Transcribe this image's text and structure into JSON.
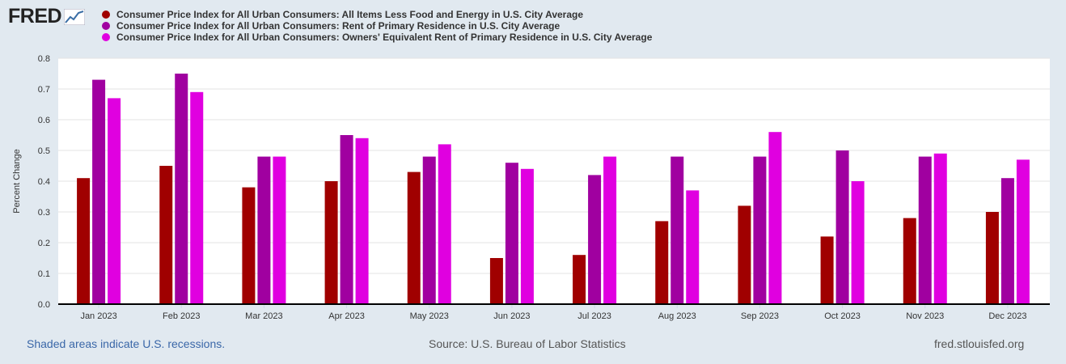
{
  "logo": {
    "text": "FRED"
  },
  "chart_data": {
    "type": "bar",
    "title": "",
    "xlabel": "",
    "ylabel": "Percent Change",
    "ylim": [
      0,
      0.8
    ],
    "yticks": [
      "0.0",
      "0.1",
      "0.2",
      "0.3",
      "0.4",
      "0.5",
      "0.6",
      "0.7",
      "0.8"
    ],
    "grid": true,
    "legend_position": "top",
    "categories": [
      "Jan 2023",
      "Feb 2023",
      "Mar 2023",
      "Apr 2023",
      "May 2023",
      "Jun 2023",
      "Jul 2023",
      "Aug 2023",
      "Sep 2023",
      "Oct 2023",
      "Nov 2023",
      "Dec 2023"
    ],
    "series": [
      {
        "name": "Consumer Price Index for All Urban Consumers: All Items Less Food and Energy in U.S. City Average",
        "color": "#a00000",
        "values": [
          0.41,
          0.45,
          0.38,
          0.4,
          0.43,
          0.15,
          0.16,
          0.27,
          0.32,
          0.22,
          0.28,
          0.3
        ]
      },
      {
        "name": "Consumer Price Index for All Urban Consumers: Rent of Primary Residence in U.S. City Average",
        "color": "#a000a0",
        "values": [
          0.73,
          0.75,
          0.48,
          0.55,
          0.48,
          0.46,
          0.42,
          0.48,
          0.48,
          0.5,
          0.48,
          0.41
        ]
      },
      {
        "name": "Consumer Price Index for All Urban Consumers: Owners' Equivalent Rent of Primary Residence in U.S. City Average",
        "color": "#e000e0",
        "values": [
          0.67,
          0.69,
          0.48,
          0.54,
          0.52,
          0.44,
          0.48,
          0.37,
          0.56,
          0.4,
          0.49,
          0.47
        ]
      }
    ]
  },
  "footer": {
    "recessions": "Shaded areas indicate U.S. recessions.",
    "source": "Source: U.S. Bureau of Labor Statistics",
    "site": "fred.stlouisfed.org"
  }
}
